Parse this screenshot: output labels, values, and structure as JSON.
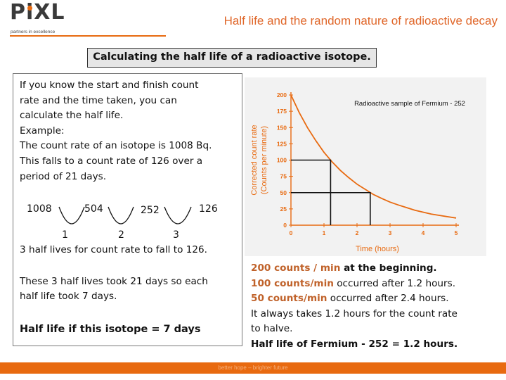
{
  "header": {
    "logo_text": "PiXL",
    "logo_tagline": "partners in excellence",
    "title": "Half life and the random nature of radioactive decay"
  },
  "subtitle": "Calculating the half life of a radioactive isotope.",
  "left": {
    "intro_lines": [
      "If you know the start and finish count",
      "rate and the time taken, you can",
      "calculate the half life.",
      "Example:",
      "The count rate of an isotope is 1008 Bq.",
      "This falls to a count rate of 126 over a",
      "period of 21 days."
    ],
    "chain": [
      "1008",
      "504",
      "252",
      "126"
    ],
    "steps": [
      "1",
      "2",
      "3"
    ],
    "half_lives_line": "3 half lives for count rate to fall to 126.",
    "took_lines": [
      "These 3 half lives took 21 days so each",
      "half life took 7 days."
    ],
    "result": "Half life if this isotope = 7 days"
  },
  "right": {
    "line1": {
      "hl": "200 counts / min",
      "rest": " at the  beginning."
    },
    "line2": {
      "hl": "100 counts/min",
      "rest": " occurred after 1.2 hours."
    },
    "line3": {
      "hl": "50 counts/min",
      "rest": " occurred after 2.4 hours."
    },
    "line4": "It always takes 1.2 hours for the count rate",
    "line5": "to halve.",
    "line6": "Half life of Fermium - 252 = 1.2 hours."
  },
  "chart_data": {
    "type": "line",
    "title": "Radioactive sample of Fermium - 252",
    "xlabel": "Time (hours)",
    "ylabel_line1": "Corrected count rate",
    "ylabel_line2": "(Counts per minute)",
    "xlim": [
      0,
      5
    ],
    "ylim": [
      0,
      200
    ],
    "xticks": [
      "0",
      "1",
      "2",
      "3",
      "4",
      "5"
    ],
    "yticks": [
      "0",
      "25",
      "50",
      "75",
      "100",
      "125",
      "150",
      "175",
      "200"
    ],
    "series": [
      {
        "x": [
          0,
          0.25,
          0.5,
          0.75,
          1,
          1.25,
          1.5,
          1.75,
          2,
          2.25,
          2.5,
          2.75,
          3,
          3.25,
          3.5,
          3.75,
          4,
          4.25,
          4.5,
          4.75,
          5
        ],
        "values": [
          200,
          173,
          150,
          130,
          112,
          97,
          84,
          73,
          63,
          55,
          47,
          41,
          35.5,
          31,
          27,
          23,
          20,
          17,
          15,
          13,
          11
        ]
      }
    ],
    "guides": [
      {
        "x": 1.2,
        "y": 100
      },
      {
        "x": 2.4,
        "y": 50
      }
    ],
    "colors": {
      "curve": "#e86a10",
      "axis": "#e86a10",
      "tick_text": "#e86a10",
      "label_text": "#e86a10",
      "guide": "#111111",
      "background": "#f2f2f2"
    }
  },
  "footer": {
    "text": "better hope – brighter future",
    "color": "#e86a10"
  }
}
